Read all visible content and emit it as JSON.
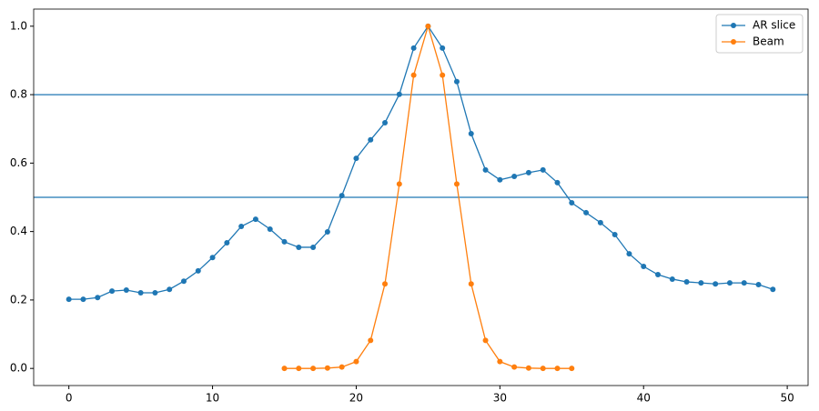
{
  "chart_data": {
    "type": "line",
    "series": [
      {
        "name": "AR slice",
        "color": "#1f77b4",
        "x": [
          0,
          1,
          2,
          3,
          4,
          5,
          6,
          7,
          8,
          9,
          10,
          11,
          12,
          13,
          14,
          15,
          16,
          17,
          18,
          19,
          20,
          21,
          22,
          23,
          24,
          25,
          26,
          27,
          28,
          29,
          30,
          31,
          32,
          33,
          34,
          35,
          36,
          37,
          38,
          39,
          40,
          41,
          42,
          43,
          44,
          45,
          46,
          47,
          48,
          49
        ],
        "values": [
          0.202,
          0.202,
          0.207,
          0.226,
          0.229,
          0.221,
          0.221,
          0.231,
          0.255,
          0.285,
          0.324,
          0.367,
          0.415,
          0.436,
          0.407,
          0.37,
          0.354,
          0.354,
          0.399,
          0.505,
          0.614,
          0.668,
          0.718,
          0.801,
          0.936,
          1.0,
          0.936,
          0.838,
          0.686,
          0.58,
          0.551,
          0.561,
          0.572,
          0.58,
          0.543,
          0.484,
          0.455,
          0.426,
          0.391,
          0.335,
          0.298,
          0.274,
          0.261,
          0.253,
          0.25,
          0.247,
          0.25,
          0.25,
          0.245,
          0.231
        ]
      },
      {
        "name": "Beam",
        "color": "#ff7f0e",
        "x": [
          15,
          16,
          17,
          18,
          19,
          20,
          21,
          22,
          23,
          24,
          25,
          26,
          27,
          28,
          29,
          30,
          31,
          32,
          33,
          34,
          35
        ],
        "values": [
          0,
          0,
          0,
          0.001,
          0.004,
          0.02,
          0.082,
          0.247,
          0.539,
          0.857,
          1.0,
          0.857,
          0.539,
          0.247,
          0.082,
          0.02,
          0.004,
          0.001,
          0,
          0,
          0
        ]
      }
    ],
    "hlines": [
      0.8,
      0.5
    ],
    "hline_color": "#1f77b4",
    "xlim": [
      -2.45,
      51.45
    ],
    "xticks": [
      0,
      10,
      20,
      30,
      40,
      50
    ],
    "ylim": [
      -0.05,
      1.05
    ],
    "yticks": [
      {
        "value": 0,
        "label": "0.0"
      },
      0.2,
      0.4,
      0.6,
      0.8,
      {
        "value": 1,
        "label": "1.0"
      }
    ],
    "legend": "upper right"
  }
}
